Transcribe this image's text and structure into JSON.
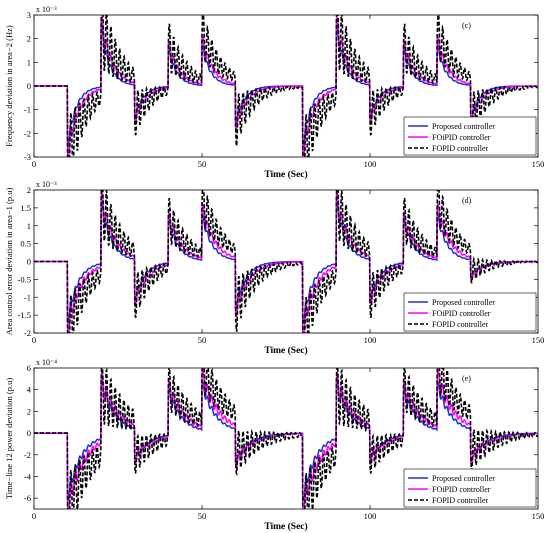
{
  "chart_data": [
    {
      "type": "line",
      "tag": "(c)",
      "ylabel": "Frequency deviation in area−2 (Hz)",
      "xlabel": "Time (Sec)",
      "multiplier": "x 10⁻³",
      "xlim": [
        0,
        150
      ],
      "ylim": [
        -3,
        3
      ],
      "xticks": [
        "0",
        "50",
        "100",
        "150"
      ],
      "yticks": [
        "3",
        "2",
        "1",
        "0",
        "-1",
        "-2",
        "-3"
      ],
      "legend_position": "bottom-right",
      "events": [
        {
          "t": 10,
          "sign": -1,
          "amp": 3.0
        },
        {
          "t": 20,
          "sign": 1,
          "amp": 3.0
        },
        {
          "t": 30,
          "sign": -1,
          "amp": 1.6
        },
        {
          "t": 40,
          "sign": 1,
          "amp": 1.9
        },
        {
          "t": 50,
          "sign": 1,
          "amp": 2.0
        },
        {
          "t": 60,
          "sign": -1,
          "amp": 1.9
        },
        {
          "t": 80,
          "sign": -1,
          "amp": 3.0
        },
        {
          "t": 90,
          "sign": 1,
          "amp": 3.0
        },
        {
          "t": 100,
          "sign": -1,
          "amp": 1.6
        },
        {
          "t": 110,
          "sign": 1,
          "amp": 1.9
        },
        {
          "t": 120,
          "sign": 1,
          "amp": 2.0
        },
        {
          "t": 130,
          "sign": -1,
          "amp": 1.7
        }
      ],
      "series": [
        {
          "name": "Proposed controller",
          "color": "#1f2fd6",
          "dash": "",
          "amp": 0.85,
          "tau": 2.5,
          "osc": 0.1
        },
        {
          "name": "FOiPID controller",
          "color": "#ff00ff",
          "dash": "",
          "amp": 0.95,
          "tau": 3.2,
          "osc": 0.15
        },
        {
          "name": "FOPID controller",
          "color": "#000000",
          "dash": "4,2",
          "amp": 1.0,
          "tau": 5.5,
          "osc": 0.55
        }
      ]
    },
    {
      "type": "line",
      "tag": "(d)",
      "ylabel": "Area control error deviation in area−1 (p.u)",
      "xlabel": "Time (Sec)",
      "multiplier": "x 10⁻³",
      "xlim": [
        0,
        150
      ],
      "ylim": [
        -2,
        2
      ],
      "xticks": [
        "0",
        "50",
        "100",
        "150"
      ],
      "yticks": [
        "2",
        "1.5",
        "1",
        "0.5",
        "0",
        "-0.5",
        "-1",
        "-1.5",
        "-2"
      ],
      "legend_position": "bottom-right",
      "events": [
        {
          "t": 10,
          "sign": -1,
          "amp": 2.0
        },
        {
          "t": 20,
          "sign": 1,
          "amp": 2.0
        },
        {
          "t": 30,
          "sign": -1,
          "amp": 1.3
        },
        {
          "t": 40,
          "sign": 1,
          "amp": 1.4
        },
        {
          "t": 50,
          "sign": 1,
          "amp": 1.5
        },
        {
          "t": 60,
          "sign": -1,
          "amp": 1.6
        },
        {
          "t": 80,
          "sign": -1,
          "amp": 2.0
        },
        {
          "t": 90,
          "sign": 1,
          "amp": 2.0
        },
        {
          "t": 100,
          "sign": -1,
          "amp": 1.3
        },
        {
          "t": 110,
          "sign": 1,
          "amp": 1.4
        },
        {
          "t": 120,
          "sign": 1,
          "amp": 1.5
        },
        {
          "t": 130,
          "sign": -1,
          "amp": 0.6
        }
      ],
      "series": [
        {
          "name": "Proposed controller",
          "color": "#1f2fd6",
          "dash": "",
          "amp": 0.85,
          "tau": 3.0,
          "osc": 0.1
        },
        {
          "name": "FOiPID controller",
          "color": "#ff00ff",
          "dash": "",
          "amp": 0.95,
          "tau": 3.8,
          "osc": 0.15
        },
        {
          "name": "FOPID controller",
          "color": "#000000",
          "dash": "4,2",
          "amp": 1.0,
          "tau": 6.0,
          "osc": 0.45
        }
      ]
    },
    {
      "type": "line",
      "tag": "(e)",
      "ylabel": "Time−line 12 power deviation (p.u)",
      "xlabel": "Time (Sec)",
      "multiplier": "x 10⁻⁴",
      "xlim": [
        0,
        150
      ],
      "ylim": [
        -7,
        6
      ],
      "xticks": [
        "0",
        "50",
        "100",
        "150"
      ],
      "yticks": [
        "6",
        "4",
        "2",
        "0",
        "-2",
        "-4",
        "-6"
      ],
      "legend_position": "bottom-right",
      "events": [
        {
          "t": 10,
          "sign": -1,
          "amp": 7.0
        },
        {
          "t": 20,
          "sign": 1,
          "amp": 6.0
        },
        {
          "t": 30,
          "sign": -1,
          "amp": 3.2
        },
        {
          "t": 40,
          "sign": 1,
          "amp": 4.8
        },
        {
          "t": 50,
          "sign": 1,
          "amp": 5.0
        },
        {
          "t": 60,
          "sign": -1,
          "amp": 3.6
        },
        {
          "t": 80,
          "sign": -1,
          "amp": 7.0
        },
        {
          "t": 90,
          "sign": 1,
          "amp": 6.0
        },
        {
          "t": 100,
          "sign": -1,
          "amp": 3.2
        },
        {
          "t": 110,
          "sign": 1,
          "amp": 4.8
        },
        {
          "t": 120,
          "sign": 1,
          "amp": 5.0
        },
        {
          "t": 130,
          "sign": -1,
          "amp": 3.4
        }
      ],
      "series": [
        {
          "name": "Proposed controller",
          "color": "#1f2fd6",
          "dash": "",
          "amp": 0.85,
          "tau": 4.0,
          "osc": 0.12
        },
        {
          "name": "FOiPID controller",
          "color": "#ff00ff",
          "dash": "",
          "amp": 0.95,
          "tau": 5.0,
          "osc": 0.18
        },
        {
          "name": "FOPID controller",
          "color": "#000000",
          "dash": "4,2",
          "amp": 1.0,
          "tau": 8.0,
          "osc": 0.45
        }
      ]
    }
  ]
}
